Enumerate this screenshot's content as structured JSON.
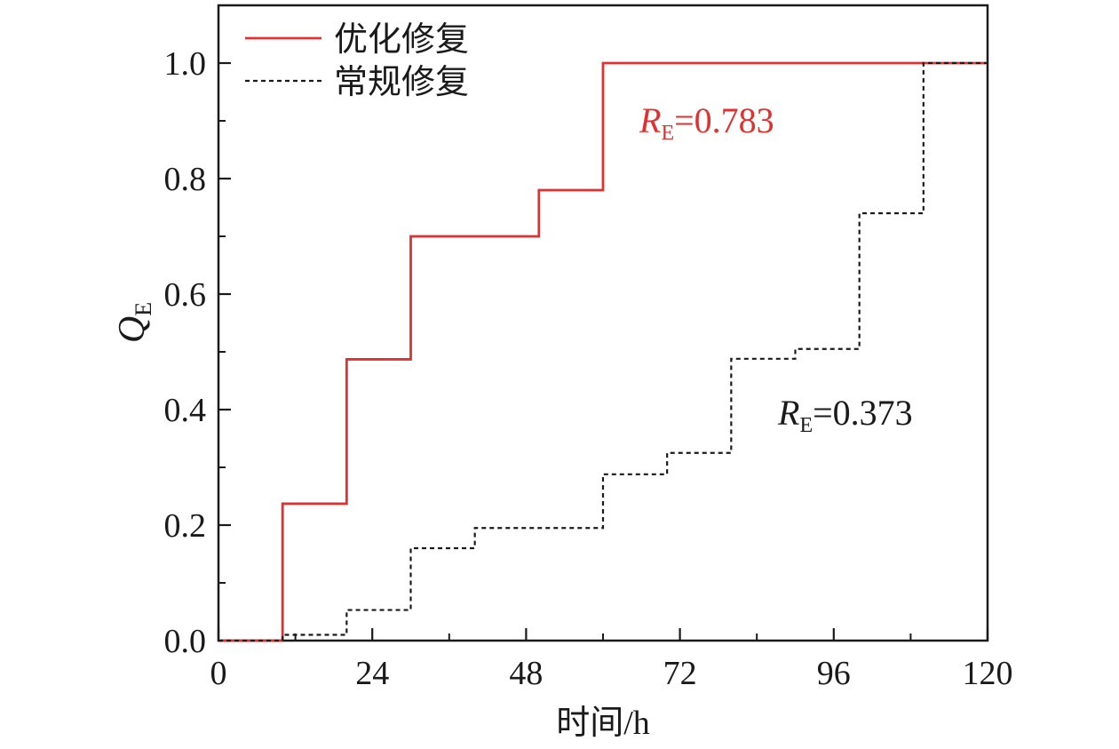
{
  "chart_data": {
    "type": "line",
    "step": true,
    "xlabel": "时间/h",
    "ylabel": {
      "main": "Q",
      "sub": "E"
    },
    "xlim": [
      0,
      120
    ],
    "ylim": [
      0,
      1.1
    ],
    "xticks": [
      0,
      24,
      48,
      72,
      96,
      120
    ],
    "xtick_labels": [
      "0",
      "24",
      "48",
      "72",
      "96",
      "120"
    ],
    "yticks": [
      0.0,
      0.2,
      0.4,
      0.6,
      0.8,
      1.0
    ],
    "ytick_labels": [
      "0.0",
      "0.2",
      "0.4",
      "0.6",
      "0.8",
      "1.0"
    ],
    "grid": false,
    "legend_position": "top-left",
    "series": [
      {
        "name": "优化修复",
        "color": "#e03030",
        "dash": "solid",
        "points": [
          [
            0,
            0
          ],
          [
            10,
            0
          ],
          [
            10,
            0.237
          ],
          [
            20,
            0.237
          ],
          [
            20,
            0.487
          ],
          [
            30,
            0.487
          ],
          [
            30,
            0.7
          ],
          [
            50,
            0.7
          ],
          [
            50,
            0.78
          ],
          [
            60,
            0.78
          ],
          [
            60,
            1.0
          ],
          [
            120,
            1.0
          ]
        ]
      },
      {
        "name": "常规修复",
        "color": "#1a1a1a",
        "dash": "dotted",
        "points": [
          [
            0,
            0
          ],
          [
            10,
            0
          ],
          [
            10,
            0.01
          ],
          [
            20,
            0.01
          ],
          [
            20,
            0.053
          ],
          [
            30,
            0.053
          ],
          [
            30,
            0.16
          ],
          [
            40,
            0.16
          ],
          [
            40,
            0.195
          ],
          [
            60,
            0.195
          ],
          [
            60,
            0.288
          ],
          [
            70,
            0.288
          ],
          [
            70,
            0.325
          ],
          [
            80,
            0.325
          ],
          [
            80,
            0.488
          ],
          [
            90,
            0.488
          ],
          [
            90,
            0.505
          ],
          [
            100,
            0.505
          ],
          [
            100,
            0.74
          ],
          [
            110,
            0.74
          ],
          [
            110,
            1.0
          ],
          [
            120,
            1.0
          ]
        ]
      }
    ],
    "annotations": [
      {
        "main": "R",
        "sub": "E",
        "value_text": "=0.783",
        "color": "#e03030",
        "at": [
          65.5,
          0.88
        ]
      },
      {
        "main": "R",
        "sub": "E",
        "value_text": "=0.373",
        "color": "#1a1a1a",
        "at": [
          87,
          0.375
        ]
      }
    ]
  }
}
